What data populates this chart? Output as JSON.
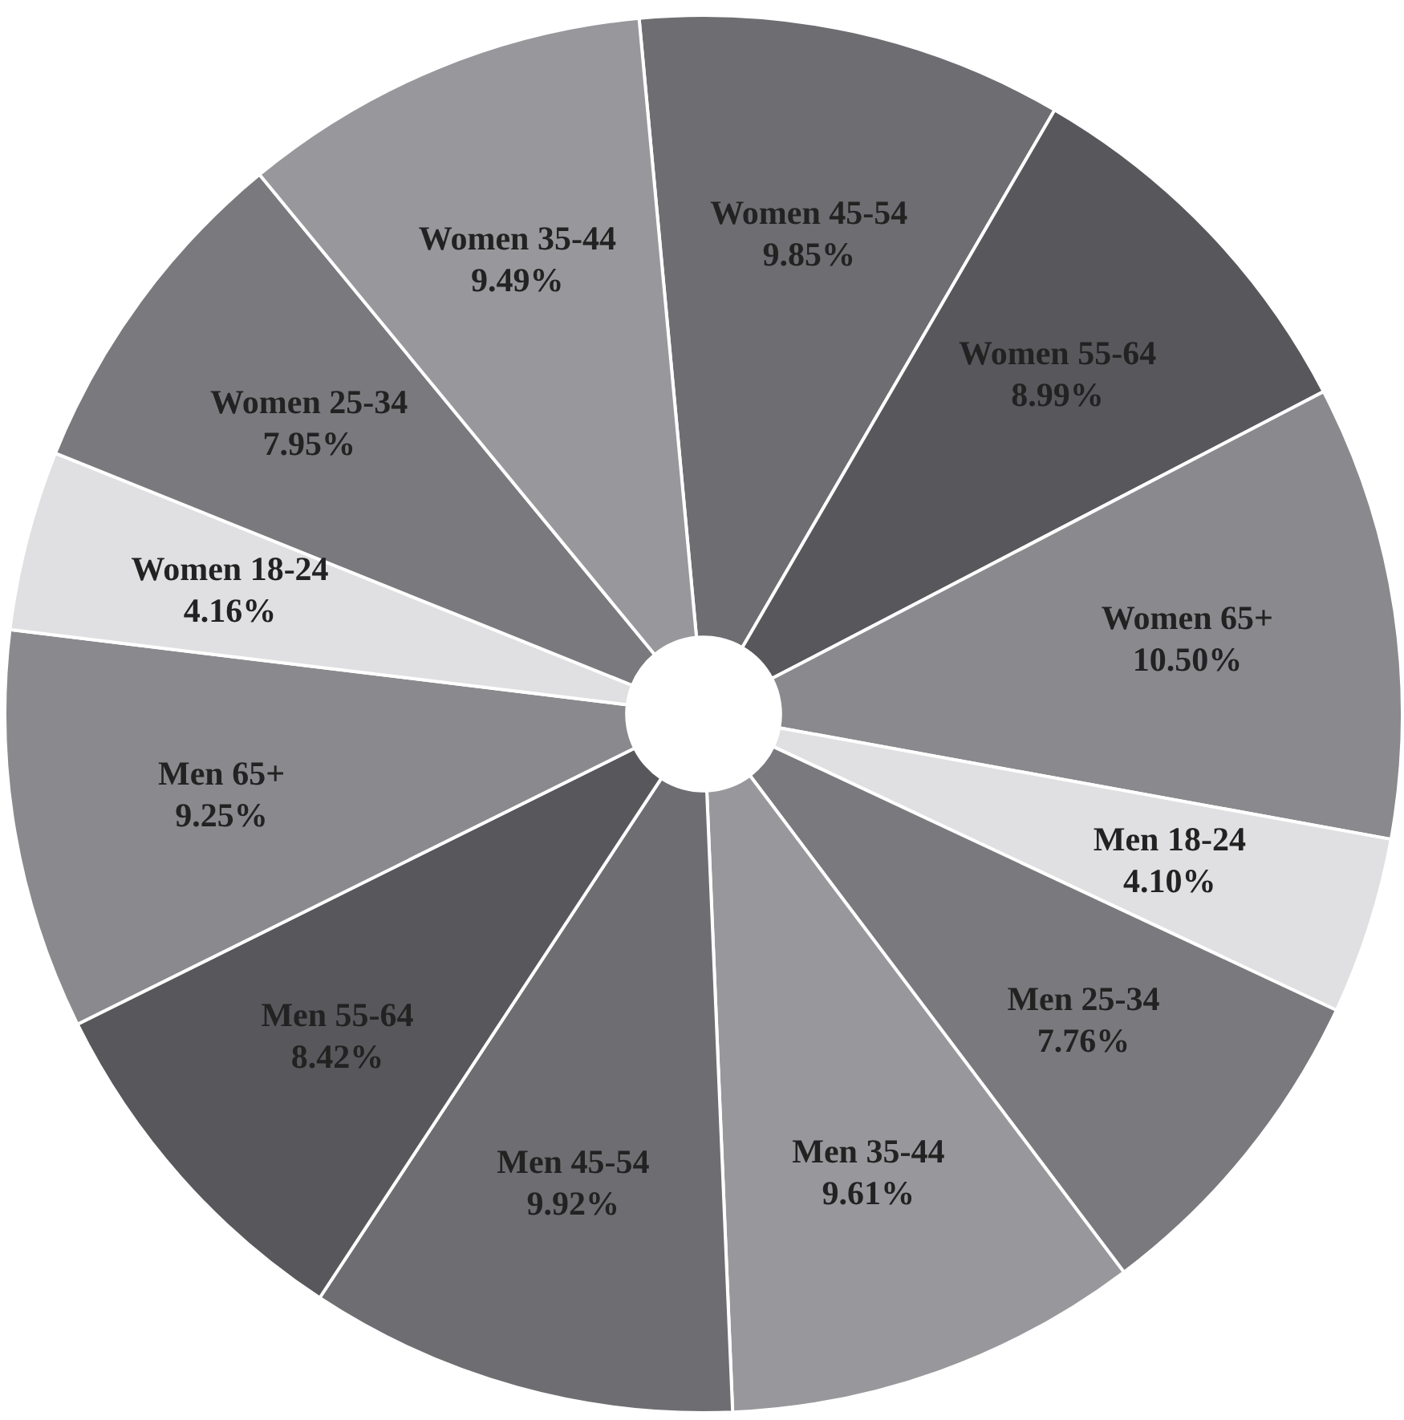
{
  "chart_data": {
    "type": "pie",
    "categories": [
      "Women 45-54",
      "Women 55-64",
      "Women 65+",
      "Men 18-24",
      "Men 25-34",
      "Men 35-44",
      "Men 45-54",
      "Men 55-64",
      "Men 65+",
      "Women 18-24",
      "Women 25-34",
      "Women 35-44"
    ],
    "values": [
      9.85,
      8.99,
      10.5,
      4.1,
      7.76,
      9.61,
      9.92,
      8.42,
      9.25,
      4.16,
      7.95,
      9.49
    ],
    "value_labels": [
      "9.85%",
      "8.99%",
      "10.50%",
      "4.10%",
      "7.76%",
      "9.61%",
      "9.92%",
      "8.42%",
      "9.25%",
      "4.16%",
      "7.95%",
      "9.49%"
    ],
    "colors": [
      "#6e6e72",
      "#58585c",
      "#8a8a8e",
      "#e0e0e2",
      "#7a7a7e",
      "#98989c",
      "#6e6e72",
      "#58585c",
      "#8a8a8e",
      "#e0e0e2",
      "#7a7a7e",
      "#98989c"
    ],
    "legend": false
  }
}
